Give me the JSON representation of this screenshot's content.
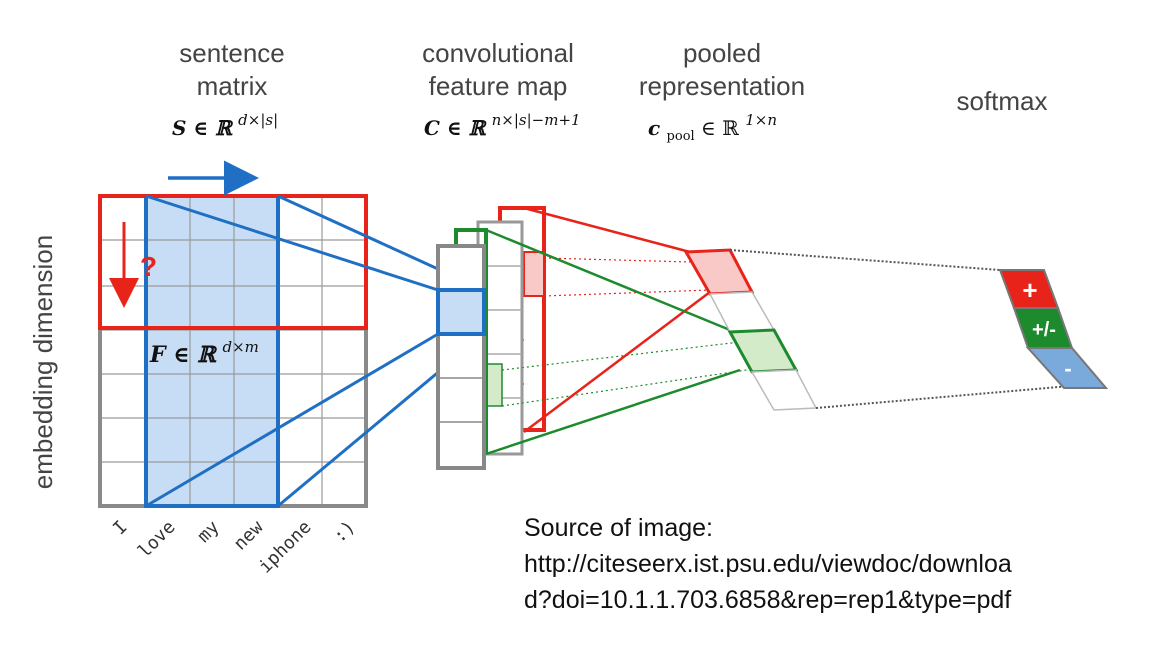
{
  "columns": [
    {
      "title": [
        "sentence",
        "matrix"
      ],
      "formula_base": "S ∈ ℝ",
      "formula_sup": "d×|s|"
    },
    {
      "title": [
        "convolutional",
        "feature map"
      ],
      "formula_base": "C ∈ ℝ",
      "formula_sup": "n×|s|−m+1"
    },
    {
      "title": [
        "pooled",
        "representation"
      ],
      "formula_base": "c",
      "formula_sub": "pool",
      "formula_rest": " ∈ ℝ",
      "formula_sup": "1×n"
    },
    {
      "title": [
        "softmax"
      ]
    }
  ],
  "axis_label": "embedding dimension",
  "filter_formula": {
    "base": "F ∈ ℝ",
    "sup": "d×m"
  },
  "question_mark": "?",
  "words": [
    "I",
    "love",
    "my",
    "new",
    "iphone",
    ":)"
  ],
  "softmax_classes": [
    "+",
    "+/-",
    "-"
  ],
  "source": {
    "label": "Source of image:",
    "url_line1": "http://citeseerx.ist.psu.edu/viewdoc/downloa",
    "url_line2": "d?doi=10.1.1.703.6858&rep=rep1&type=pdf"
  },
  "colors": {
    "blue": "#1f6fc5",
    "light_blue": "#c7ddf6",
    "red": "#e8231a",
    "green": "#1e8a2e",
    "light_green": "#d4ebc9",
    "light_red": "#f8c9c6",
    "grey": "#888888",
    "softmax_plus": "#e8231a",
    "softmax_neutral": "#1e8a2e",
    "softmax_minus": "#7aa9db"
  }
}
